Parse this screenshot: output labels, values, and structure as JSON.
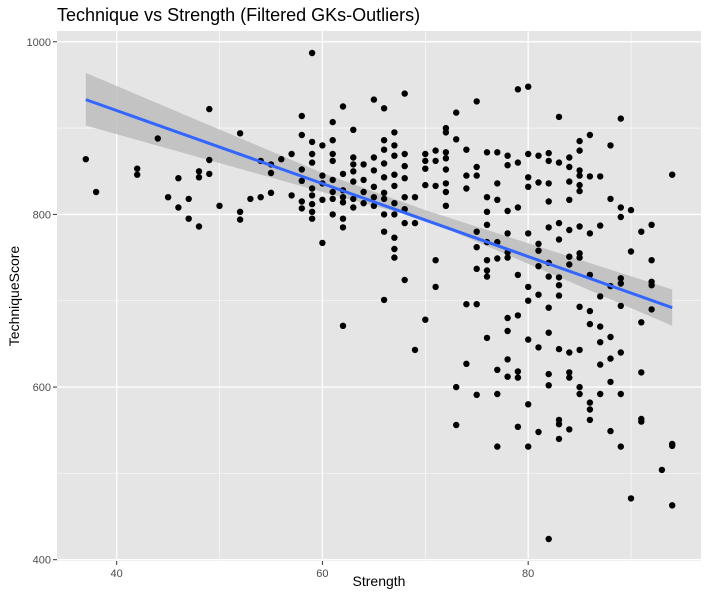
{
  "chart_data": {
    "type": "scatter",
    "title": "Technique vs Strength (Filtered GKs-Outliers)",
    "xlabel": "Strength",
    "ylabel": "TechniqueScore",
    "xlim": [
      34.2,
      96.8
    ],
    "ylim": [
      398.5,
      1012.5
    ],
    "x_ticks": [
      40,
      60,
      80
    ],
    "y_ticks": [
      400,
      600,
      800,
      1000
    ],
    "x_minor_ticks": [
      50,
      70,
      90
    ],
    "y_minor_ticks": [
      500,
      700,
      900
    ],
    "grid": true,
    "panel_background": "#e5e5e5",
    "grid_color": "#ffffff",
    "point_color": "#000000",
    "trend_line": {
      "method": "linear regression",
      "color": "#3366ff",
      "start": {
        "x": 37,
        "y": 933
      },
      "end": {
        "x": 94,
        "y": 692
      },
      "ci_band_color": "#bdbdbd",
      "ci_lower": [
        {
          "x": 37,
          "y": 903
        },
        {
          "x": 60,
          "y": 826
        },
        {
          "x": 70,
          "y": 794
        },
        {
          "x": 94,
          "y": 671
        }
      ],
      "ci_upper": [
        {
          "x": 94,
          "y": 713
        },
        {
          "x": 70,
          "y": 805
        },
        {
          "x": 60,
          "y": 848
        },
        {
          "x": 37,
          "y": 964
        }
      ]
    },
    "points": [
      [
        37,
        864
      ],
      [
        38,
        826
      ],
      [
        42,
        853
      ],
      [
        42,
        846
      ],
      [
        44,
        888
      ],
      [
        45,
        820
      ],
      [
        46,
        808
      ],
      [
        46,
        842
      ],
      [
        47,
        818
      ],
      [
        47,
        795
      ],
      [
        48,
        786
      ],
      [
        48,
        850
      ],
      [
        48,
        843
      ],
      [
        49,
        922
      ],
      [
        49,
        863
      ],
      [
        49,
        847
      ],
      [
        50,
        810
      ],
      [
        52,
        894
      ],
      [
        52,
        803
      ],
      [
        52,
        794
      ],
      [
        53,
        818
      ],
      [
        54,
        820
      ],
      [
        54,
        862
      ],
      [
        55,
        858
      ],
      [
        55,
        848
      ],
      [
        55,
        825
      ],
      [
        56,
        864
      ],
      [
        57,
        870
      ],
      [
        57,
        822
      ],
      [
        58,
        914
      ],
      [
        58,
        892
      ],
      [
        58,
        852
      ],
      [
        58,
        839
      ],
      [
        58,
        815
      ],
      [
        58,
        807
      ],
      [
        59,
        987
      ],
      [
        59,
        884
      ],
      [
        59,
        870
      ],
      [
        59,
        860
      ],
      [
        59,
        830
      ],
      [
        59,
        822
      ],
      [
        59,
        812
      ],
      [
        59,
        803
      ],
      [
        59,
        795
      ],
      [
        60,
        880
      ],
      [
        60,
        845
      ],
      [
        60,
        836
      ],
      [
        60,
        817
      ],
      [
        60,
        767
      ],
      [
        61,
        907
      ],
      [
        61,
        886
      ],
      [
        61,
        870
      ],
      [
        61,
        862
      ],
      [
        61,
        840
      ],
      [
        61,
        826
      ],
      [
        61,
        818
      ],
      [
        61,
        800
      ],
      [
        62,
        925
      ],
      [
        62,
        847
      ],
      [
        62,
        828
      ],
      [
        62,
        820
      ],
      [
        62,
        814
      ],
      [
        62,
        795
      ],
      [
        62,
        785
      ],
      [
        62,
        671
      ],
      [
        63,
        898
      ],
      [
        63,
        866
      ],
      [
        63,
        858
      ],
      [
        63,
        850
      ],
      [
        63,
        838
      ],
      [
        63,
        818
      ],
      [
        63,
        808
      ],
      [
        64,
        858
      ],
      [
        64,
        840
      ],
      [
        64,
        826
      ],
      [
        64,
        813
      ],
      [
        65,
        933
      ],
      [
        65,
        866
      ],
      [
        65,
        851
      ],
      [
        65,
        832
      ],
      [
        65,
        820
      ],
      [
        65,
        810
      ],
      [
        66,
        923
      ],
      [
        66,
        886
      ],
      [
        66,
        875
      ],
      [
        66,
        859
      ],
      [
        66,
        843
      ],
      [
        66,
        825
      ],
      [
        66,
        818
      ],
      [
        66,
        800
      ],
      [
        66,
        780
      ],
      [
        66,
        701
      ],
      [
        67,
        895
      ],
      [
        67,
        880
      ],
      [
        67,
        868
      ],
      [
        67,
        846
      ],
      [
        67,
        833
      ],
      [
        67,
        813
      ],
      [
        67,
        800
      ],
      [
        67,
        773
      ],
      [
        67,
        760
      ],
      [
        67,
        750
      ],
      [
        68,
        940
      ],
      [
        68,
        870
      ],
      [
        68,
        856
      ],
      [
        68,
        842
      ],
      [
        68,
        820
      ],
      [
        68,
        806
      ],
      [
        68,
        790
      ],
      [
        68,
        724
      ],
      [
        69,
        820
      ],
      [
        69,
        790
      ],
      [
        69,
        643
      ],
      [
        70,
        870
      ],
      [
        70,
        862
      ],
      [
        70,
        853
      ],
      [
        70,
        834
      ],
      [
        70,
        678
      ],
      [
        71,
        874
      ],
      [
        71,
        862
      ],
      [
        71,
        833
      ],
      [
        71,
        747
      ],
      [
        71,
        716
      ],
      [
        72,
        900
      ],
      [
        72,
        895
      ],
      [
        72,
        872
      ],
      [
        72,
        865
      ],
      [
        72,
        852
      ],
      [
        72,
        836
      ],
      [
        72,
        826
      ],
      [
        72,
        810
      ],
      [
        73,
        918
      ],
      [
        73,
        887
      ],
      [
        73,
        600
      ],
      [
        73,
        556
      ],
      [
        74,
        875
      ],
      [
        74,
        845
      ],
      [
        74,
        830
      ],
      [
        74,
        696
      ],
      [
        74,
        627
      ],
      [
        75,
        931
      ],
      [
        75,
        855
      ],
      [
        75,
        845
      ],
      [
        75,
        780
      ],
      [
        75,
        762
      ],
      [
        75,
        737
      ],
      [
        75,
        696
      ],
      [
        75,
        591
      ],
      [
        76,
        872
      ],
      [
        76,
        820
      ],
      [
        76,
        803
      ],
      [
        76,
        788
      ],
      [
        76,
        768
      ],
      [
        76,
        747
      ],
      [
        76,
        735
      ],
      [
        76,
        728
      ],
      [
        76,
        657
      ],
      [
        77,
        872
      ],
      [
        77,
        836
      ],
      [
        77,
        817
      ],
      [
        77,
        768
      ],
      [
        77,
        749
      ],
      [
        77,
        620
      ],
      [
        77,
        592
      ],
      [
        77,
        531
      ],
      [
        78,
        868
      ],
      [
        78,
        857
      ],
      [
        78,
        804
      ],
      [
        78,
        778
      ],
      [
        78,
        756
      ],
      [
        78,
        750
      ],
      [
        78,
        680
      ],
      [
        78,
        665
      ],
      [
        78,
        632
      ],
      [
        78,
        612
      ],
      [
        79,
        945
      ],
      [
        79,
        860
      ],
      [
        79,
        808
      ],
      [
        79,
        730
      ],
      [
        79,
        683
      ],
      [
        79,
        618
      ],
      [
        79,
        611
      ],
      [
        79,
        554
      ],
      [
        80,
        948
      ],
      [
        80,
        870
      ],
      [
        80,
        843
      ],
      [
        80,
        832
      ],
      [
        80,
        778
      ],
      [
        80,
        716
      ],
      [
        80,
        700
      ],
      [
        80,
        655
      ],
      [
        80,
        580
      ],
      [
        80,
        531
      ],
      [
        81,
        868
      ],
      [
        81,
        837
      ],
      [
        81,
        766
      ],
      [
        81,
        758
      ],
      [
        81,
        740
      ],
      [
        81,
        707
      ],
      [
        81,
        646
      ],
      [
        81,
        548
      ],
      [
        82,
        871
      ],
      [
        82,
        862
      ],
      [
        82,
        836
      ],
      [
        82,
        815
      ],
      [
        82,
        785
      ],
      [
        82,
        744
      ],
      [
        82,
        728
      ],
      [
        82,
        692
      ],
      [
        82,
        663
      ],
      [
        82,
        615
      ],
      [
        82,
        602
      ],
      [
        82,
        424
      ],
      [
        83,
        913
      ],
      [
        83,
        860
      ],
      [
        83,
        790
      ],
      [
        83,
        771
      ],
      [
        83,
        727
      ],
      [
        83,
        718
      ],
      [
        83,
        706
      ],
      [
        83,
        644
      ],
      [
        83,
        562
      ],
      [
        83,
        557
      ],
      [
        83,
        540
      ],
      [
        84,
        866
      ],
      [
        84,
        855
      ],
      [
        84,
        838
      ],
      [
        84,
        817
      ],
      [
        84,
        782
      ],
      [
        84,
        751
      ],
      [
        84,
        742
      ],
      [
        84,
        640
      ],
      [
        84,
        617
      ],
      [
        84,
        611
      ],
      [
        84,
        551
      ],
      [
        85,
        885
      ],
      [
        85,
        874
      ],
      [
        85,
        851
      ],
      [
        85,
        845
      ],
      [
        85,
        834
      ],
      [
        85,
        827
      ],
      [
        85,
        786
      ],
      [
        85,
        755
      ],
      [
        85,
        750
      ],
      [
        85,
        693
      ],
      [
        85,
        643
      ],
      [
        85,
        600
      ],
      [
        85,
        592
      ],
      [
        86,
        892
      ],
      [
        86,
        844
      ],
      [
        86,
        778
      ],
      [
        86,
        730
      ],
      [
        86,
        688
      ],
      [
        86,
        673
      ],
      [
        86,
        582
      ],
      [
        86,
        574
      ],
      [
        86,
        562
      ],
      [
        87,
        844
      ],
      [
        87,
        787
      ],
      [
        87,
        705
      ],
      [
        87,
        670
      ],
      [
        87,
        652
      ],
      [
        87,
        626
      ],
      [
        87,
        592
      ],
      [
        88,
        880
      ],
      [
        88,
        818
      ],
      [
        88,
        717
      ],
      [
        88,
        658
      ],
      [
        88,
        633
      ],
      [
        88,
        606
      ],
      [
        88,
        549
      ],
      [
        89,
        911
      ],
      [
        89,
        808
      ],
      [
        89,
        797
      ],
      [
        89,
        726
      ],
      [
        89,
        720
      ],
      [
        89,
        694
      ],
      [
        89,
        640
      ],
      [
        89,
        592
      ],
      [
        89,
        531
      ],
      [
        90,
        805
      ],
      [
        90,
        757
      ],
      [
        90,
        471
      ],
      [
        91,
        780
      ],
      [
        91,
        675
      ],
      [
        91,
        617
      ],
      [
        91,
        563
      ],
      [
        91,
        560
      ],
      [
        92,
        788
      ],
      [
        92,
        747
      ],
      [
        92,
        722
      ],
      [
        92,
        718
      ],
      [
        92,
        690
      ],
      [
        93,
        504
      ],
      [
        94,
        846
      ],
      [
        94,
        534
      ],
      [
        94,
        532
      ],
      [
        94,
        463
      ]
    ]
  }
}
